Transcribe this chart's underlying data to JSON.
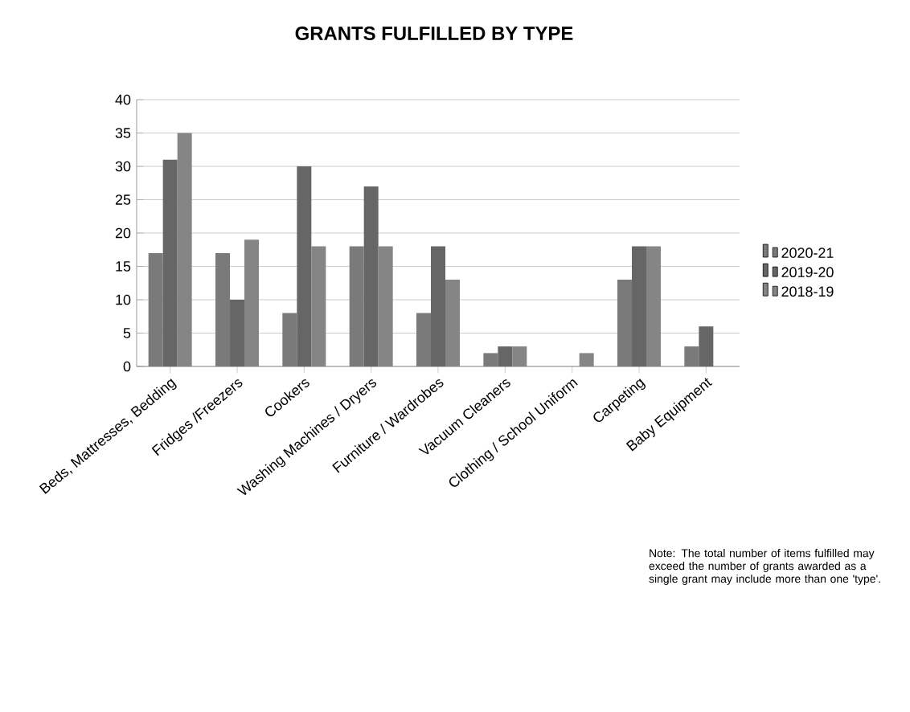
{
  "chart_data": {
    "type": "bar",
    "title": "GRANTS FULFILLED BY TYPE",
    "categories": [
      "Beds, Mattresses, Bedding",
      "Fridges /Freezers",
      "Cookers",
      "Washing Machines / Dryers",
      "Furniture / Wardrobes",
      "Vacuum Cleaners",
      "Clothing / School Uniform",
      "Carpeting",
      "Baby Equipment"
    ],
    "series": [
      {
        "name": "2020-21",
        "color": "#7a7a7a",
        "values": [
          17,
          17,
          8,
          18,
          8,
          2,
          null,
          13,
          3
        ]
      },
      {
        "name": "2019-20",
        "color": "#666666",
        "values": [
          31,
          10,
          30,
          27,
          18,
          3,
          null,
          18,
          6
        ]
      },
      {
        "name": "2018-19",
        "color": "#858585",
        "values": [
          35,
          19,
          18,
          18,
          13,
          3,
          2,
          18,
          null
        ]
      }
    ],
    "ylim": [
      0,
      40
    ],
    "yticks": [
      0,
      5,
      10,
      15,
      20,
      25,
      30,
      35,
      40
    ],
    "grid": "y",
    "legend": "right",
    "annotations": [
      "Note: The total number of items fulfilled may exceed the number of grants awarded as a single grant may include more than one 'type'."
    ]
  }
}
